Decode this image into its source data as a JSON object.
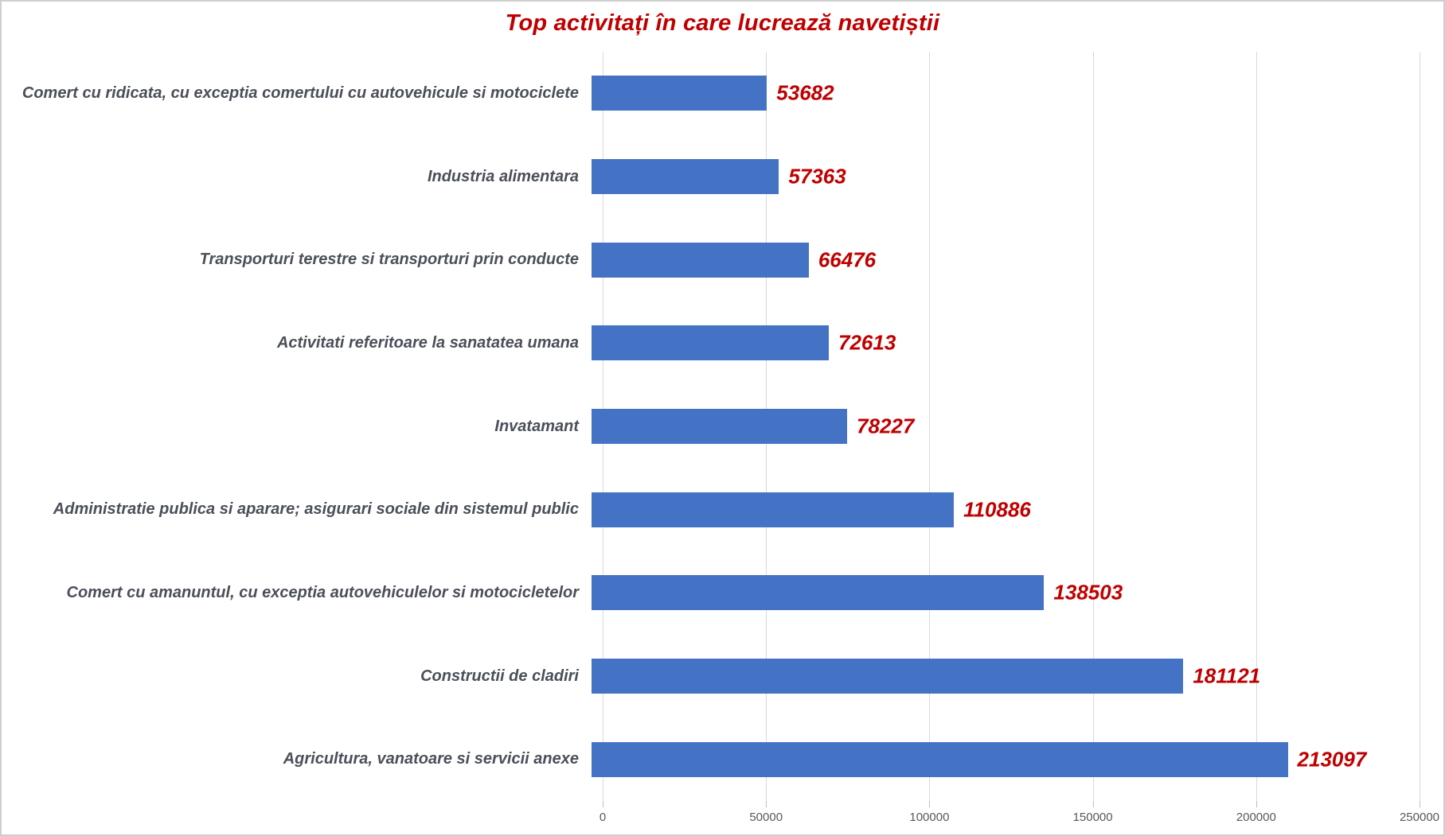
{
  "chart_data": {
    "type": "bar",
    "orientation": "horizontal",
    "title": "Top activitați în care lucrează navetiștii",
    "categories": [
      "Comert cu ridicata, cu exceptia comertului cu autovehicule si motociclete",
      "Industria alimentara",
      "Transporturi terestre si transporturi prin conducte",
      "Activitati referitoare la sanatatea umana",
      "Invatamant",
      "Administratie publica si aparare; asigurari sociale din sistemul public",
      "Comert cu amanuntul, cu exceptia autovehiculelor si motocicletelor",
      "Constructii de cladiri",
      "Agricultura, vanatoare si servicii anexe"
    ],
    "values": [
      53682,
      57363,
      66476,
      72613,
      78227,
      110886,
      138503,
      181121,
      213097
    ],
    "xlabel": "",
    "ylabel": "",
    "xlim": [
      0,
      250000
    ],
    "x_ticks": [
      0,
      50000,
      100000,
      150000,
      200000,
      250000
    ],
    "grid": true,
    "legend": false,
    "colors": {
      "bar": "#4472C4",
      "title": "#C00000",
      "value_label": "#C00000",
      "category_label": "#4a4f59",
      "gridline": "#d9d9d9",
      "tick_label": "#595959"
    }
  }
}
